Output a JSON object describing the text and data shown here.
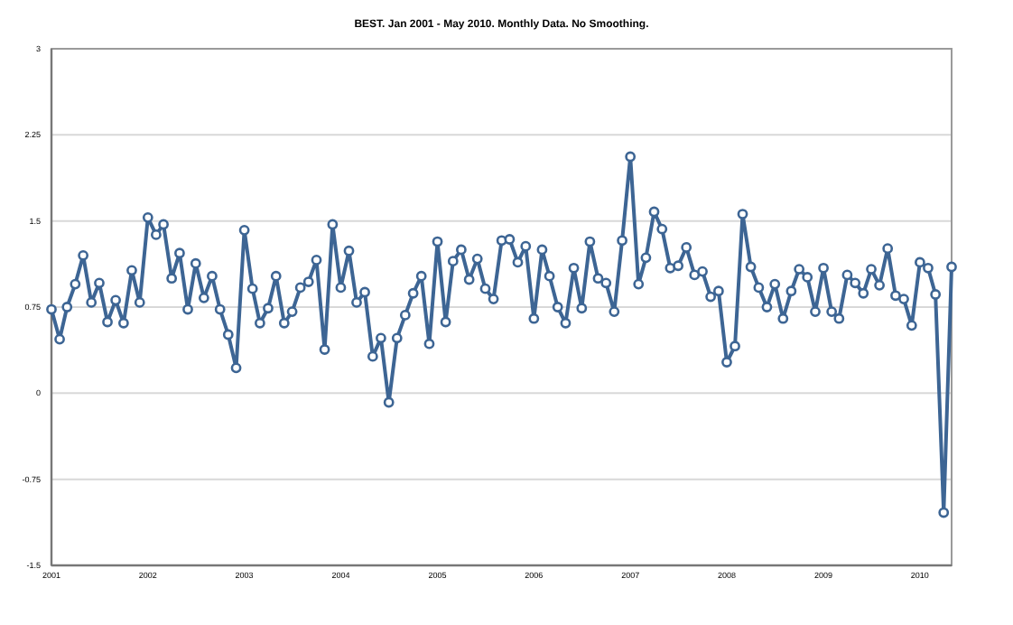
{
  "chart_data": {
    "type": "line",
    "title": "BEST. Jan 2001 - May 2010. Monthly Data. No Smoothing.",
    "x": [
      "2001-01",
      "2001-02",
      "2001-03",
      "2001-04",
      "2001-05",
      "2001-06",
      "2001-07",
      "2001-08",
      "2001-09",
      "2001-10",
      "2001-11",
      "2001-12",
      "2002-01",
      "2002-02",
      "2002-03",
      "2002-04",
      "2002-05",
      "2002-06",
      "2002-07",
      "2002-08",
      "2002-09",
      "2002-10",
      "2002-11",
      "2002-12",
      "2003-01",
      "2003-02",
      "2003-03",
      "2003-04",
      "2003-05",
      "2003-06",
      "2003-07",
      "2003-08",
      "2003-09",
      "2003-10",
      "2003-11",
      "2003-12",
      "2004-01",
      "2004-02",
      "2004-03",
      "2004-04",
      "2004-05",
      "2004-06",
      "2004-07",
      "2004-08",
      "2004-09",
      "2004-10",
      "2004-11",
      "2004-12",
      "2005-01",
      "2005-02",
      "2005-03",
      "2005-04",
      "2005-05",
      "2005-06",
      "2005-07",
      "2005-08",
      "2005-09",
      "2005-10",
      "2005-11",
      "2005-12",
      "2006-01",
      "2006-02",
      "2006-03",
      "2006-04",
      "2006-05",
      "2006-06",
      "2006-07",
      "2006-08",
      "2006-09",
      "2006-10",
      "2006-11",
      "2006-12",
      "2007-01",
      "2007-02",
      "2007-03",
      "2007-04",
      "2007-05",
      "2007-06",
      "2007-07",
      "2007-08",
      "2007-09",
      "2007-10",
      "2007-11",
      "2007-12",
      "2008-01",
      "2008-02",
      "2008-03",
      "2008-04",
      "2008-05",
      "2008-06",
      "2008-07",
      "2008-08",
      "2008-09",
      "2008-10",
      "2008-11",
      "2008-12",
      "2009-01",
      "2009-02",
      "2009-03",
      "2009-04",
      "2009-05",
      "2009-06",
      "2009-07",
      "2009-08",
      "2009-09",
      "2009-10",
      "2009-11",
      "2009-12",
      "2010-01",
      "2010-02",
      "2010-03",
      "2010-04",
      "2010-05"
    ],
    "series": [
      {
        "color": "#3d6594",
        "values": [
          0.73,
          0.47,
          0.75,
          0.95,
          1.2,
          0.79,
          0.96,
          0.62,
          0.81,
          0.61,
          1.07,
          0.79,
          1.53,
          1.38,
          1.47,
          1.0,
          1.22,
          0.73,
          1.13,
          0.83,
          1.02,
          0.73,
          0.51,
          0.22,
          1.42,
          0.91,
          0.61,
          0.74,
          1.02,
          0.61,
          0.71,
          0.92,
          0.97,
          1.16,
          0.38,
          1.47,
          0.92,
          1.24,
          0.79,
          0.88,
          0.32,
          0.48,
          -0.08,
          0.48,
          0.68,
          0.87,
          1.02,
          0.43,
          1.32,
          0.62,
          1.15,
          1.25,
          0.99,
          1.17,
          0.91,
          0.82,
          1.33,
          1.34,
          1.14,
          1.28,
          0.65,
          1.25,
          1.02,
          0.75,
          0.61,
          1.09,
          0.74,
          1.32,
          1.0,
          0.96,
          0.71,
          1.33,
          2.06,
          0.95,
          1.18,
          1.58,
          1.43,
          1.09,
          1.11,
          1.27,
          1.03,
          1.06,
          0.84,
          0.89,
          0.27,
          0.41,
          1.56,
          1.1,
          0.92,
          0.75,
          0.95,
          0.65,
          0.89,
          1.08,
          1.01,
          0.71,
          1.09,
          0.71,
          0.65,
          1.03,
          0.96,
          0.87,
          1.08,
          0.94,
          1.26,
          0.85,
          0.82,
          0.59,
          1.14,
          1.09,
          0.86,
          -1.04,
          1.1
        ]
      }
    ],
    "xlim": [
      "2001-01",
      "2010-05"
    ],
    "xticks": [
      "2001",
      "2002",
      "2003",
      "2004",
      "2005",
      "2006",
      "2007",
      "2008",
      "2009",
      "2010"
    ],
    "ylim": [
      -1.5,
      3
    ],
    "yticks": [
      -1.5,
      -0.75,
      0,
      0.75,
      1.5,
      2.25,
      3
    ],
    "grid": "y",
    "marker": "circle",
    "line_style": "solid"
  }
}
